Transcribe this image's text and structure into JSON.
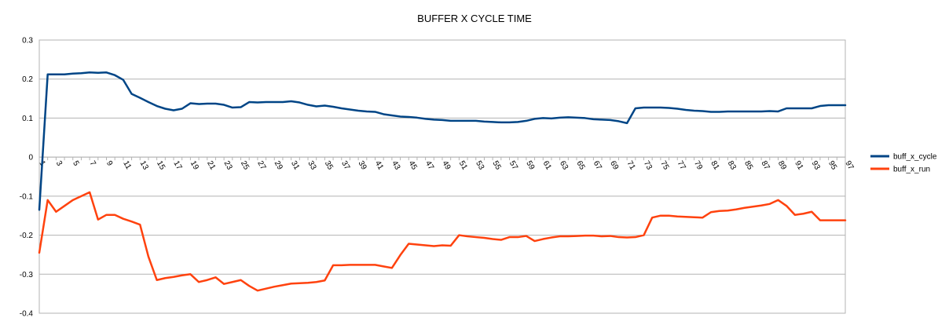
{
  "chart_data": {
    "type": "line",
    "title": "BUFFER X CYCLE TIME",
    "xlabel": "",
    "ylabel": "",
    "ylim": [
      -0.4,
      0.3
    ],
    "yticks": [
      "0.3",
      "0.2",
      "0.1",
      "0",
      "-0.1",
      "-0.2",
      "-0.3",
      "-0.4"
    ],
    "ytick_values": [
      0.3,
      0.2,
      0.1,
      0,
      -0.1,
      -0.2,
      -0.3,
      -0.4
    ],
    "x_count": 97,
    "xtick_labels": [
      "1",
      "3",
      "5",
      "7",
      "9",
      "11",
      "13",
      "15",
      "17",
      "19",
      "21",
      "23",
      "25",
      "27",
      "29",
      "31",
      "33",
      "35",
      "37",
      "39",
      "41",
      "43",
      "45",
      "47",
      "49",
      "51",
      "53",
      "55",
      "57",
      "59",
      "61",
      "63",
      "65",
      "67",
      "69",
      "71",
      "73",
      "75",
      "77",
      "79",
      "81",
      "83",
      "85",
      "87",
      "89",
      "91",
      "93",
      "95",
      "97"
    ],
    "grid": true,
    "legend_position": "right",
    "series": [
      {
        "name": "buff_x_cycle",
        "color": "#004586",
        "values": [
          -0.135,
          0.212,
          0.212,
          0.212,
          0.214,
          0.215,
          0.217,
          0.216,
          0.217,
          0.21,
          0.198,
          0.162,
          0.152,
          0.141,
          0.131,
          0.124,
          0.12,
          0.124,
          0.138,
          0.136,
          0.137,
          0.137,
          0.134,
          0.127,
          0.128,
          0.141,
          0.14,
          0.141,
          0.141,
          0.141,
          0.143,
          0.14,
          0.134,
          0.13,
          0.132,
          0.129,
          0.125,
          0.122,
          0.119,
          0.117,
          0.116,
          0.11,
          0.107,
          0.104,
          0.103,
          0.101,
          0.098,
          0.096,
          0.095,
          0.093,
          0.093,
          0.093,
          0.093,
          0.091,
          0.09,
          0.089,
          0.089,
          0.09,
          0.093,
          0.098,
          0.1,
          0.099,
          0.101,
          0.102,
          0.101,
          0.1,
          0.097,
          0.096,
          0.095,
          0.092,
          0.087,
          0.125,
          0.127,
          0.127,
          0.127,
          0.126,
          0.124,
          0.121,
          0.119,
          0.118,
          0.116,
          0.116,
          0.117,
          0.117,
          0.117,
          0.117,
          0.117,
          0.118,
          0.117,
          0.125,
          0.125,
          0.125,
          0.125,
          0.131,
          0.133,
          0.133,
          0.133
        ]
      },
      {
        "name": "buff_x_run",
        "color": "#ff420e",
        "values": [
          -0.245,
          -0.11,
          -0.14,
          -0.125,
          -0.11,
          -0.1,
          -0.09,
          -0.16,
          -0.148,
          -0.148,
          -0.158,
          -0.165,
          -0.173,
          -0.255,
          -0.315,
          -0.31,
          -0.307,
          -0.303,
          -0.3,
          -0.32,
          -0.315,
          -0.308,
          -0.325,
          -0.32,
          -0.315,
          -0.33,
          -0.342,
          -0.337,
          -0.332,
          -0.328,
          -0.324,
          -0.323,
          -0.322,
          -0.32,
          -0.316,
          -0.277,
          -0.277,
          -0.276,
          -0.276,
          -0.276,
          -0.276,
          -0.28,
          -0.284,
          -0.251,
          -0.222,
          -0.224,
          -0.226,
          -0.228,
          -0.226,
          -0.227,
          -0.2,
          -0.203,
          -0.205,
          -0.207,
          -0.21,
          -0.212,
          -0.205,
          -0.205,
          -0.202,
          -0.215,
          -0.21,
          -0.206,
          -0.203,
          -0.203,
          -0.202,
          -0.201,
          -0.201,
          -0.203,
          -0.202,
          -0.205,
          -0.206,
          -0.205,
          -0.2,
          -0.155,
          -0.15,
          -0.15,
          -0.152,
          -0.153,
          -0.154,
          -0.155,
          -0.141,
          -0.138,
          -0.137,
          -0.134,
          -0.13,
          -0.127,
          -0.124,
          -0.12,
          -0.11,
          -0.125,
          -0.148,
          -0.145,
          -0.14,
          -0.162,
          -0.162,
          -0.162,
          -0.162
        ]
      }
    ]
  }
}
